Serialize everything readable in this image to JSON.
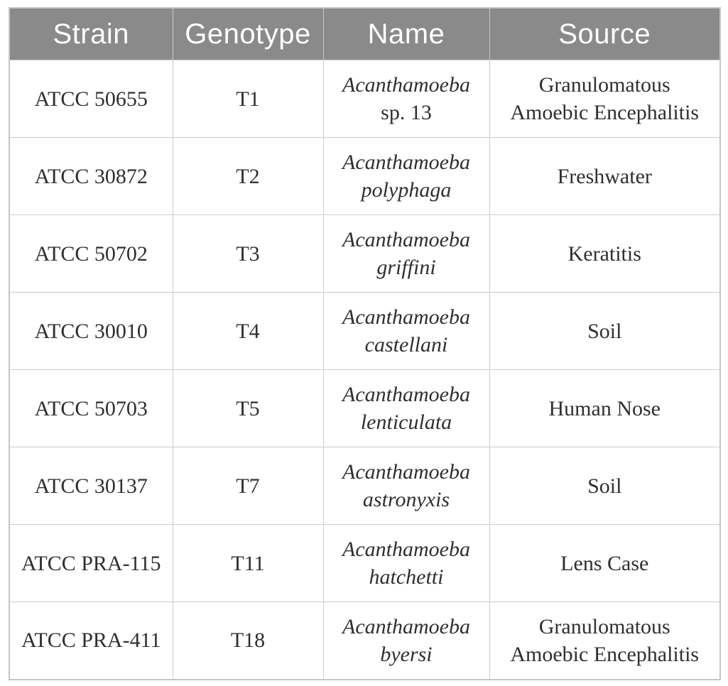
{
  "colors": {
    "header_background": "#8a8a8a",
    "header_text": "#ffffff",
    "body_text": "#2f2f2f",
    "grid_border": "#cccccc",
    "page_background": "#ffffff"
  },
  "table": {
    "columns": [
      "Strain",
      "Genotype",
      "Name",
      "Source"
    ],
    "rows": [
      {
        "strain": "ATCC 50655",
        "genotype": "T1",
        "name": {
          "genus": "Acanthamoeba",
          "species": "sp. 13"
        },
        "source": "Granulomatous Amoebic Encephalitis"
      },
      {
        "strain": "ATCC 30872",
        "genotype": "T2",
        "name": {
          "genus": "Acanthamoeba",
          "species": "polyphaga"
        },
        "source": "Freshwater"
      },
      {
        "strain": "ATCC 50702",
        "genotype": "T3",
        "name": {
          "genus": "Acanthamoeba",
          "species": "griffini"
        },
        "source": "Keratitis"
      },
      {
        "strain": "ATCC 30010",
        "genotype": "T4",
        "name": {
          "genus": "Acanthamoeba",
          "species": "castellani"
        },
        "source": "Soil"
      },
      {
        "strain": "ATCC 50703",
        "genotype": "T5",
        "name": {
          "genus": "Acanthamoeba",
          "species": "lenticulata"
        },
        "source": "Human Nose"
      },
      {
        "strain": "ATCC 30137",
        "genotype": "T7",
        "name": {
          "genus": "Acanthamoeba",
          "species": "astronyxis"
        },
        "source": "Soil"
      },
      {
        "strain": "ATCC PRA-115",
        "genotype": "T11",
        "name": {
          "genus": "Acanthamoeba",
          "species": "hatchetti"
        },
        "source": "Lens Case"
      },
      {
        "strain": "ATCC PRA-411",
        "genotype": "T18",
        "name": {
          "genus": "Acanthamoeba",
          "species": "byersi"
        },
        "source": "Granulomatous Amoebic Encephalitis"
      }
    ]
  }
}
